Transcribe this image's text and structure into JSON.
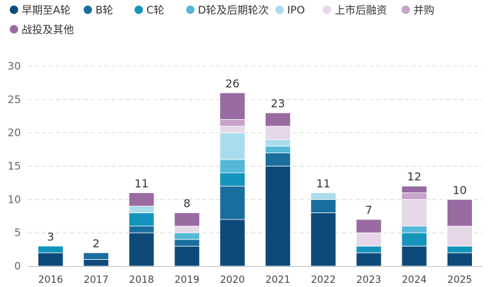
{
  "chart_data": {
    "type": "bar",
    "stacked": true,
    "title": "",
    "xlabel": "",
    "ylabel": "",
    "ylim": [
      0,
      30
    ],
    "yticks": [
      0,
      5,
      10,
      15,
      20,
      25,
      30
    ],
    "grid": true,
    "legend_position": "top-left",
    "categories": [
      "2016",
      "2017",
      "2018",
      "2019",
      "2020",
      "2021",
      "2022",
      "2023",
      "2024",
      "2025"
    ],
    "series": [
      {
        "name": "早期至A轮",
        "color": "#0d4a7a",
        "values": [
          2,
          1,
          5,
          3,
          7,
          15,
          8,
          2,
          3,
          2
        ]
      },
      {
        "name": "B轮",
        "color": "#1a6e9e",
        "values": [
          0,
          1,
          1,
          1,
          5,
          2,
          2,
          0,
          0,
          0
        ]
      },
      {
        "name": "C轮",
        "color": "#1494bc",
        "values": [
          1,
          0,
          2,
          0,
          2,
          0,
          0,
          1,
          2,
          1
        ]
      },
      {
        "name": "D轮及后期轮次",
        "color": "#55b8d6",
        "values": [
          0,
          0,
          0,
          1,
          2,
          1,
          0,
          0,
          1,
          0
        ]
      },
      {
        "name": "IPO",
        "color": "#a9dcec",
        "values": [
          0,
          0,
          1,
          0,
          4,
          1,
          1,
          0,
          0,
          0
        ]
      },
      {
        "name": "上市后融资",
        "color": "#e6d8e8",
        "values": [
          0,
          0,
          0,
          1,
          1,
          2,
          0,
          2,
          4,
          3
        ]
      },
      {
        "name": "并购",
        "color": "#c8a3cb",
        "values": [
          0,
          0,
          0,
          0,
          1,
          0,
          0,
          0,
          1,
          0
        ]
      },
      {
        "name": "战投及其他",
        "color": "#9a6aa3",
        "values": [
          0,
          0,
          2,
          2,
          4,
          2,
          0,
          2,
          1,
          4
        ]
      }
    ],
    "totals": [
      3,
      2,
      11,
      8,
      26,
      23,
      11,
      7,
      12,
      10
    ]
  }
}
